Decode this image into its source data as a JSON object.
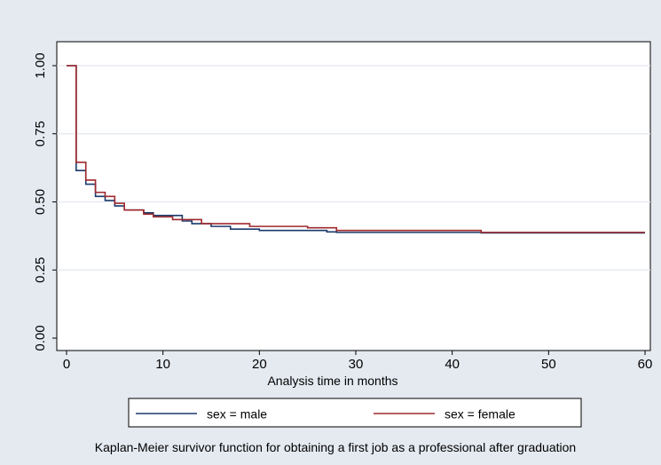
{
  "chart_data": {
    "type": "line",
    "subtype": "step",
    "title": "",
    "caption": "Kaplan-Meier survivor function for obtaining a first job as a professional after graduation",
    "xlabel": "Analysis time in months",
    "ylabel": "",
    "xlim": [
      0,
      60
    ],
    "ylim": [
      0,
      1
    ],
    "xticks": [
      0,
      10,
      20,
      30,
      40,
      50,
      60
    ],
    "yticks": [
      0.0,
      0.25,
      0.5,
      0.75,
      1.0
    ],
    "xtick_labels": [
      "0",
      "10",
      "20",
      "30",
      "40",
      "50",
      "60"
    ],
    "ytick_labels": [
      "0.00",
      "0.25",
      "0.50",
      "0.75",
      "1.00"
    ],
    "grid": "horizontal",
    "legend_position": "bottom",
    "series": [
      {
        "name": "sex = male",
        "color": "#1a3a6b",
        "x": [
          0,
          1,
          2,
          3,
          4,
          5,
          6,
          8,
          9,
          12,
          13,
          15,
          17,
          20,
          27,
          28,
          43,
          60
        ],
        "y": [
          1.0,
          0.615,
          0.565,
          0.52,
          0.505,
          0.485,
          0.47,
          0.46,
          0.45,
          0.43,
          0.42,
          0.41,
          0.4,
          0.395,
          0.39,
          0.388,
          0.386,
          0.386
        ]
      },
      {
        "name": "sex = female",
        "color": "#a0282c",
        "x": [
          0,
          1,
          2,
          3,
          4,
          5,
          6,
          8,
          9,
          11,
          14,
          19,
          25,
          28,
          43,
          60
        ],
        "y": [
          1.0,
          0.645,
          0.58,
          0.535,
          0.52,
          0.495,
          0.47,
          0.455,
          0.445,
          0.435,
          0.42,
          0.41,
          0.405,
          0.395,
          0.388,
          0.388
        ]
      }
    ]
  }
}
